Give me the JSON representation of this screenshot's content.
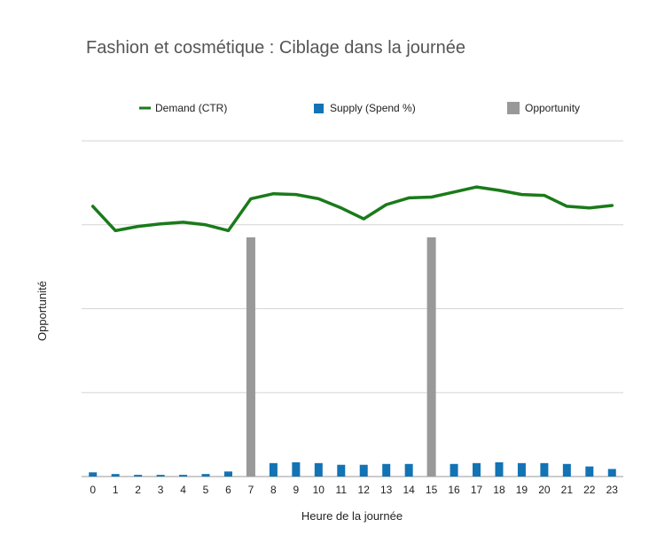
{
  "chart_data": {
    "type": "bar",
    "title": "Fashion et cosmétique : Ciblage dans la journée",
    "xlabel": "Heure de la journée",
    "ylabel": "Opportunité",
    "categories": [
      "0",
      "1",
      "2",
      "3",
      "4",
      "5",
      "6",
      "7",
      "8",
      "9",
      "10",
      "11",
      "12",
      "13",
      "14",
      "15",
      "16",
      "17",
      "18",
      "19",
      "20",
      "21",
      "22",
      "23"
    ],
    "ylim": [
      0,
      4
    ],
    "grid": true,
    "legend_position": "top",
    "show_y_tick_labels": false,
    "series": [
      {
        "name": "Demand (CTR)",
        "kind": "line",
        "color": "#1a7a1a",
        "values": [
          3.22,
          2.93,
          2.98,
          3.01,
          3.03,
          3.0,
          2.93,
          3.31,
          3.37,
          3.36,
          3.31,
          3.2,
          3.07,
          3.24,
          3.32,
          3.33,
          3.39,
          3.45,
          3.41,
          3.36,
          3.35,
          3.22,
          3.2,
          3.23
        ]
      },
      {
        "name": "Supply (Spend %)",
        "kind": "bar",
        "color": "#1273b5",
        "values": [
          0.05,
          0.03,
          0.02,
          0.02,
          0.02,
          0.03,
          0.06,
          0.12,
          0.16,
          0.17,
          0.16,
          0.14,
          0.14,
          0.15,
          0.15,
          0.15,
          0.15,
          0.16,
          0.17,
          0.16,
          0.16,
          0.15,
          0.12,
          0.09
        ]
      },
      {
        "name": "Opportunity",
        "kind": "bar",
        "color": "#999999",
        "values": [
          0,
          0,
          0,
          0,
          0,
          0,
          0,
          2.85,
          0,
          0,
          0,
          0,
          0,
          0,
          0,
          2.85,
          0,
          0,
          0,
          0,
          0,
          0,
          0,
          0
        ]
      }
    ]
  }
}
